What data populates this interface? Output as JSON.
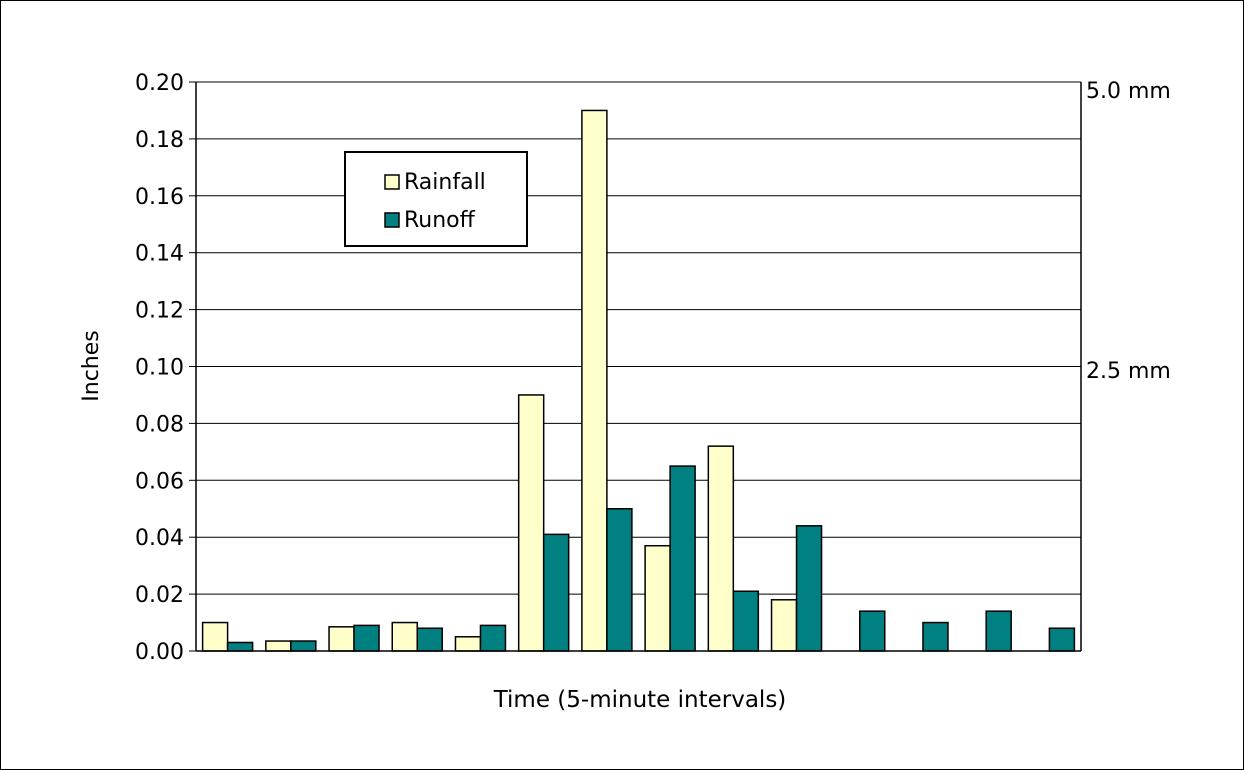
{
  "chart_data": {
    "type": "bar",
    "title": "",
    "xlabel": "Time (5-minute intervals)",
    "ylabel": "Inches",
    "ylim": [
      0,
      0.2
    ],
    "yticks": [
      "0.00",
      "0.02",
      "0.04",
      "0.06",
      "0.08",
      "0.10",
      "0.12",
      "0.14",
      "0.16",
      "0.18",
      "0.20"
    ],
    "secondary_axis_labels": [
      {
        "value": 0.1969,
        "label": "5.0 mm"
      },
      {
        "value": 0.0984,
        "label": "2.5 mm"
      }
    ],
    "grid": true,
    "legend_position": "upper-left",
    "categories": [
      "",
      "",
      "",
      "",
      "",
      "",
      "",
      "",
      "",
      "",
      "",
      "",
      "",
      ""
    ],
    "series": [
      {
        "name": "Rainfall",
        "color": "#ffffcc",
        "values": [
          0.01,
          0.0035,
          0.0085,
          0.01,
          0.005,
          0.09,
          0.19,
          0.037,
          0.072,
          0.018,
          0,
          0,
          0,
          0
        ]
      },
      {
        "name": "Runoff",
        "color": "#008080",
        "values": [
          0.003,
          0.0035,
          0.009,
          0.008,
          0.009,
          0.041,
          0.05,
          0.065,
          0.021,
          0.044,
          0.014,
          0.01,
          0.014,
          0.008
        ]
      }
    ]
  }
}
